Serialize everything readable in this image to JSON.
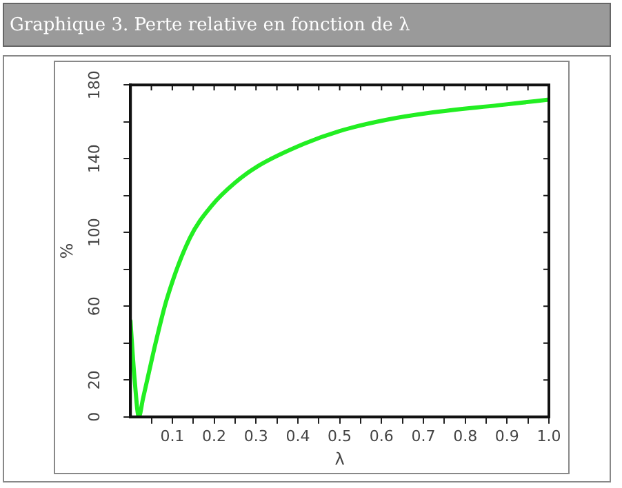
{
  "chart_data": {
    "type": "line",
    "title": "Graphique 3. Perte relative en fonction de λ",
    "xlabel": "λ",
    "ylabel": "%",
    "x": [
      0,
      0.005,
      0.01,
      0.02,
      0.03,
      0.043,
      0.06,
      0.087,
      0.142,
      0.196,
      0.25,
      0.305,
      0.414,
      0.5,
      0.61,
      0.72,
      0.88,
      1.0
    ],
    "series": [
      {
        "color": "#22ee22",
        "values": [
          52,
          35,
          20,
          0,
          10,
          23,
          40,
          64,
          97,
          115,
          127,
          136,
          148,
          155,
          161,
          165,
          169,
          172
        ]
      }
    ],
    "xlim": [
      0,
      1
    ],
    "xticks": [
      {
        "value": 0.05,
        "label": null
      },
      0.1,
      {
        "value": 0.15,
        "label": null
      },
      0.2,
      {
        "value": 0.25,
        "label": null
      },
      0.3,
      {
        "value": 0.35,
        "label": null
      },
      0.4,
      {
        "value": 0.45,
        "label": null
      },
      0.5,
      {
        "value": 0.55,
        "label": null
      },
      0.6,
      {
        "value": 0.65,
        "label": null
      },
      0.7,
      {
        "value": 0.75,
        "label": null
      },
      0.8,
      {
        "value": 0.85,
        "label": null
      },
      0.9,
      {
        "value": 0.95,
        "label": null
      },
      {
        "value": 1,
        "label": "1.0"
      }
    ],
    "ylim": [
      0,
      180
    ],
    "yticks": [
      0,
      20,
      {
        "value": 40,
        "label": null
      },
      60,
      {
        "value": 80,
        "label": null
      },
      100,
      {
        "value": 120,
        "label": null
      },
      140,
      {
        "value": 160,
        "label": null
      },
      180
    ],
    "grid": false,
    "legend": false,
    "marker": "none",
    "line_style": "solid"
  }
}
